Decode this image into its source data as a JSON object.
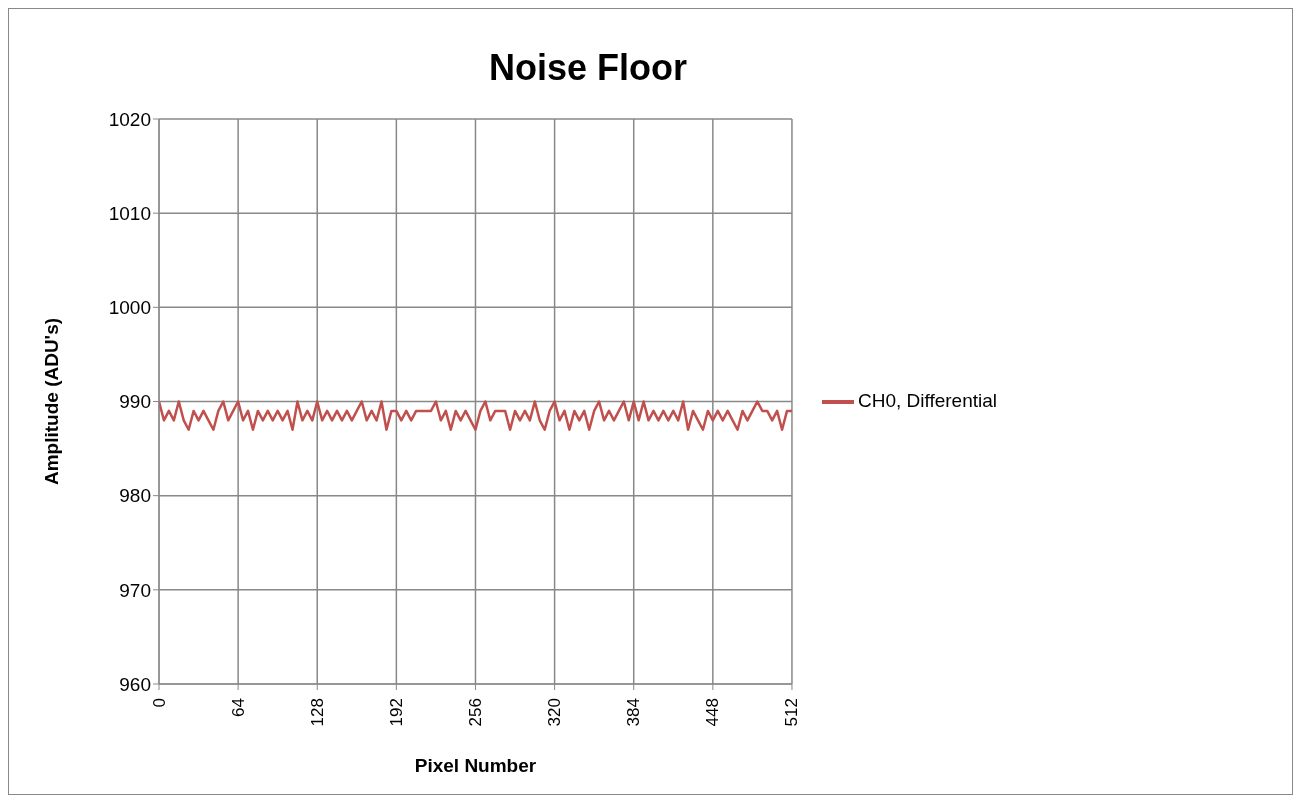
{
  "chart_data": {
    "type": "line",
    "title": "Noise Floor",
    "xlabel": "Pixel Number",
    "ylabel": "Amplitude (ADU's)",
    "x": [
      0,
      4,
      8,
      12,
      16,
      20,
      24,
      28,
      32,
      36,
      40,
      44,
      48,
      52,
      56,
      60,
      64,
      68,
      72,
      76,
      80,
      84,
      88,
      92,
      96,
      100,
      104,
      108,
      112,
      116,
      120,
      124,
      128,
      132,
      136,
      140,
      144,
      148,
      152,
      156,
      160,
      164,
      168,
      172,
      176,
      180,
      184,
      188,
      192,
      196,
      200,
      204,
      208,
      212,
      216,
      220,
      224,
      228,
      232,
      236,
      240,
      244,
      248,
      252,
      256,
      260,
      264,
      268,
      272,
      276,
      280,
      284,
      288,
      292,
      296,
      300,
      304,
      308,
      312,
      316,
      320,
      324,
      328,
      332,
      336,
      340,
      344,
      348,
      352,
      356,
      360,
      364,
      368,
      372,
      376,
      380,
      384,
      388,
      392,
      396,
      400,
      404,
      408,
      412,
      416,
      420,
      424,
      428,
      432,
      436,
      440,
      444,
      448,
      452,
      456,
      460,
      464,
      468,
      472,
      476,
      480,
      484,
      488,
      492,
      496,
      500,
      504,
      508,
      512
    ],
    "series": [
      {
        "name": "CH0, Differential",
        "color": "#c0504d",
        "values": [
          990,
          988,
          989,
          988,
          990,
          988,
          987,
          989,
          988,
          989,
          988,
          987,
          989,
          990,
          988,
          989,
          990,
          988,
          989,
          987,
          989,
          988,
          989,
          988,
          989,
          988,
          989,
          987,
          990,
          988,
          989,
          988,
          990,
          988,
          989,
          988,
          989,
          988,
          989,
          988,
          989,
          990,
          988,
          989,
          988,
          990,
          987,
          989,
          989,
          988,
          989,
          988,
          989,
          989,
          989,
          989,
          990,
          988,
          989,
          987,
          989,
          988,
          989,
          988,
          987,
          989,
          990,
          988,
          989,
          989,
          989,
          987,
          989,
          988,
          989,
          988,
          990,
          988,
          987,
          989,
          990,
          988,
          989,
          987,
          989,
          988,
          989,
          987,
          989,
          990,
          988,
          989,
          988,
          989,
          990,
          988,
          990,
          988,
          990,
          988,
          989,
          988,
          989,
          988,
          989,
          988,
          990,
          987,
          989,
          988,
          987,
          989,
          988,
          989,
          988,
          989,
          988,
          987,
          989,
          988,
          989,
          990,
          989,
          989,
          988,
          989,
          987,
          989,
          989
        ]
      }
    ],
    "xlim": [
      0,
      512
    ],
    "xticks": [
      0,
      64,
      128,
      192,
      256,
      320,
      384,
      448,
      512
    ],
    "ylim": [
      960,
      1020
    ],
    "yticks": [
      960,
      970,
      980,
      990,
      1000,
      1010,
      1020
    ],
    "grid": true,
    "legend": "right"
  }
}
